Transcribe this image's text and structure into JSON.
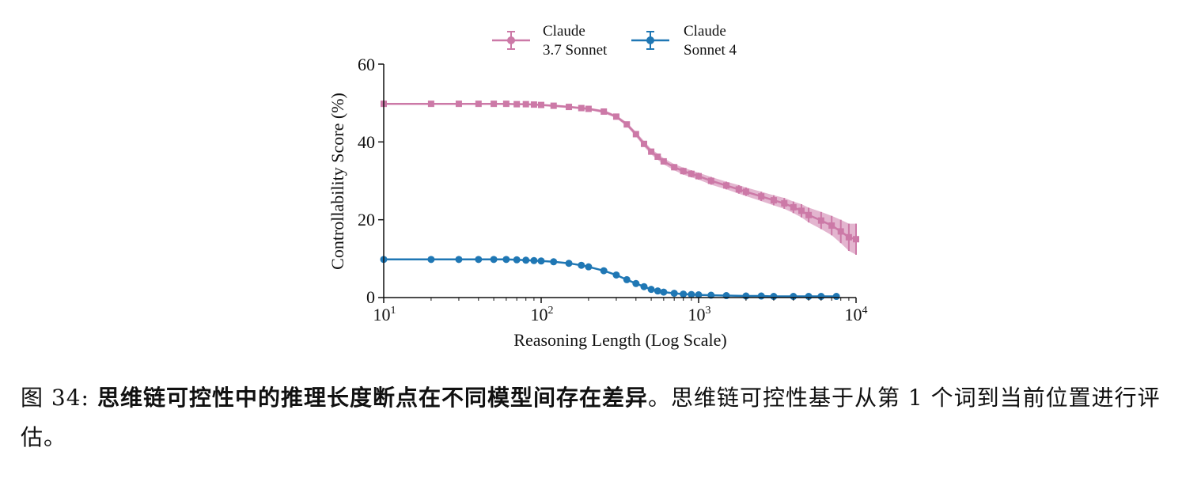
{
  "chart_data": {
    "type": "line",
    "xlabel": "Reasoning Length (Log Scale)",
    "ylabel": "Controllability Score (%)",
    "xscale": "log",
    "xlim": [
      10,
      10000
    ],
    "ylim": [
      0,
      60
    ],
    "yticks": [
      "0",
      "20",
      "40",
      "60"
    ],
    "xticks": [
      {
        "base": "10",
        "exp": "1"
      },
      {
        "base": "10",
        "exp": "2"
      },
      {
        "base": "10",
        "exp": "3"
      },
      {
        "base": "10",
        "exp": "4"
      }
    ],
    "legend_position": "top-center",
    "series": [
      {
        "name_line1": "Claude",
        "name_line2": "3.7 Sonnet",
        "color": "#cc79a7",
        "marker": "square",
        "x": [
          10,
          20,
          30,
          40,
          50,
          60,
          70,
          80,
          90,
          100,
          120,
          150,
          180,
          200,
          250,
          300,
          350,
          400,
          450,
          500,
          550,
          600,
          700,
          800,
          900,
          1000,
          1200,
          1500,
          1800,
          2000,
          2500,
          3000,
          3500,
          4000,
          4500,
          5000,
          6000,
          7000,
          8000,
          9000,
          10000
        ],
        "y": [
          49.8,
          49.8,
          49.8,
          49.8,
          49.8,
          49.8,
          49.7,
          49.7,
          49.6,
          49.5,
          49.3,
          49.0,
          48.7,
          48.5,
          47.8,
          46.5,
          44.5,
          42.0,
          39.5,
          37.5,
          36.2,
          35.0,
          33.5,
          32.5,
          31.8,
          31.2,
          30.0,
          28.8,
          27.8,
          27.2,
          26.0,
          25.0,
          24.2,
          23.2,
          22.3,
          21.2,
          19.8,
          18.5,
          17.0,
          15.5,
          15.0
        ],
        "error": [
          0.2,
          0.2,
          0.2,
          0.2,
          0.2,
          0.2,
          0.2,
          0.2,
          0.2,
          0.2,
          0.3,
          0.3,
          0.3,
          0.3,
          0.4,
          0.4,
          0.5,
          0.6,
          0.7,
          0.7,
          0.8,
          0.8,
          0.8,
          0.9,
          0.9,
          0.9,
          1.0,
          1.0,
          1.1,
          1.1,
          1.2,
          1.3,
          1.4,
          1.5,
          1.7,
          1.9,
          2.2,
          2.5,
          3.0,
          3.5,
          4.0
        ]
      },
      {
        "name_line1": "Claude",
        "name_line2": "Sonnet 4",
        "color": "#1f77b4",
        "marker": "circle",
        "x": [
          10,
          20,
          30,
          40,
          50,
          60,
          70,
          80,
          90,
          100,
          120,
          150,
          180,
          200,
          250,
          300,
          350,
          400,
          450,
          500,
          550,
          600,
          700,
          800,
          900,
          1000,
          1200,
          1500,
          2000,
          2500,
          3000,
          4000,
          5000,
          6000,
          7500
        ],
        "y": [
          9.8,
          9.8,
          9.8,
          9.8,
          9.8,
          9.8,
          9.7,
          9.6,
          9.5,
          9.4,
          9.2,
          8.8,
          8.3,
          7.9,
          6.9,
          5.8,
          4.6,
          3.6,
          2.8,
          2.1,
          1.7,
          1.4,
          1.1,
          0.9,
          0.8,
          0.7,
          0.6,
          0.5,
          0.4,
          0.4,
          0.3,
          0.3,
          0.3,
          0.3,
          0.3
        ],
        "error": [
          0.1,
          0.1,
          0.1,
          0.1,
          0.1,
          0.1,
          0.1,
          0.1,
          0.1,
          0.1,
          0.1,
          0.2,
          0.2,
          0.2,
          0.2,
          0.2,
          0.2,
          0.2,
          0.2,
          0.2,
          0.1,
          0.1,
          0.1,
          0.1,
          0.1,
          0.1,
          0.1,
          0.1,
          0.1,
          0.1,
          0.1,
          0.1,
          0.1,
          0.1,
          0.1
        ]
      }
    ]
  },
  "caption": {
    "label": "图 34:",
    "bold_text": "思维链可控性中的推理长度断点在不同模型间存在差异",
    "rest_text": "。思维链可控性基于从第 1 个词到当前位置进行评估。"
  }
}
